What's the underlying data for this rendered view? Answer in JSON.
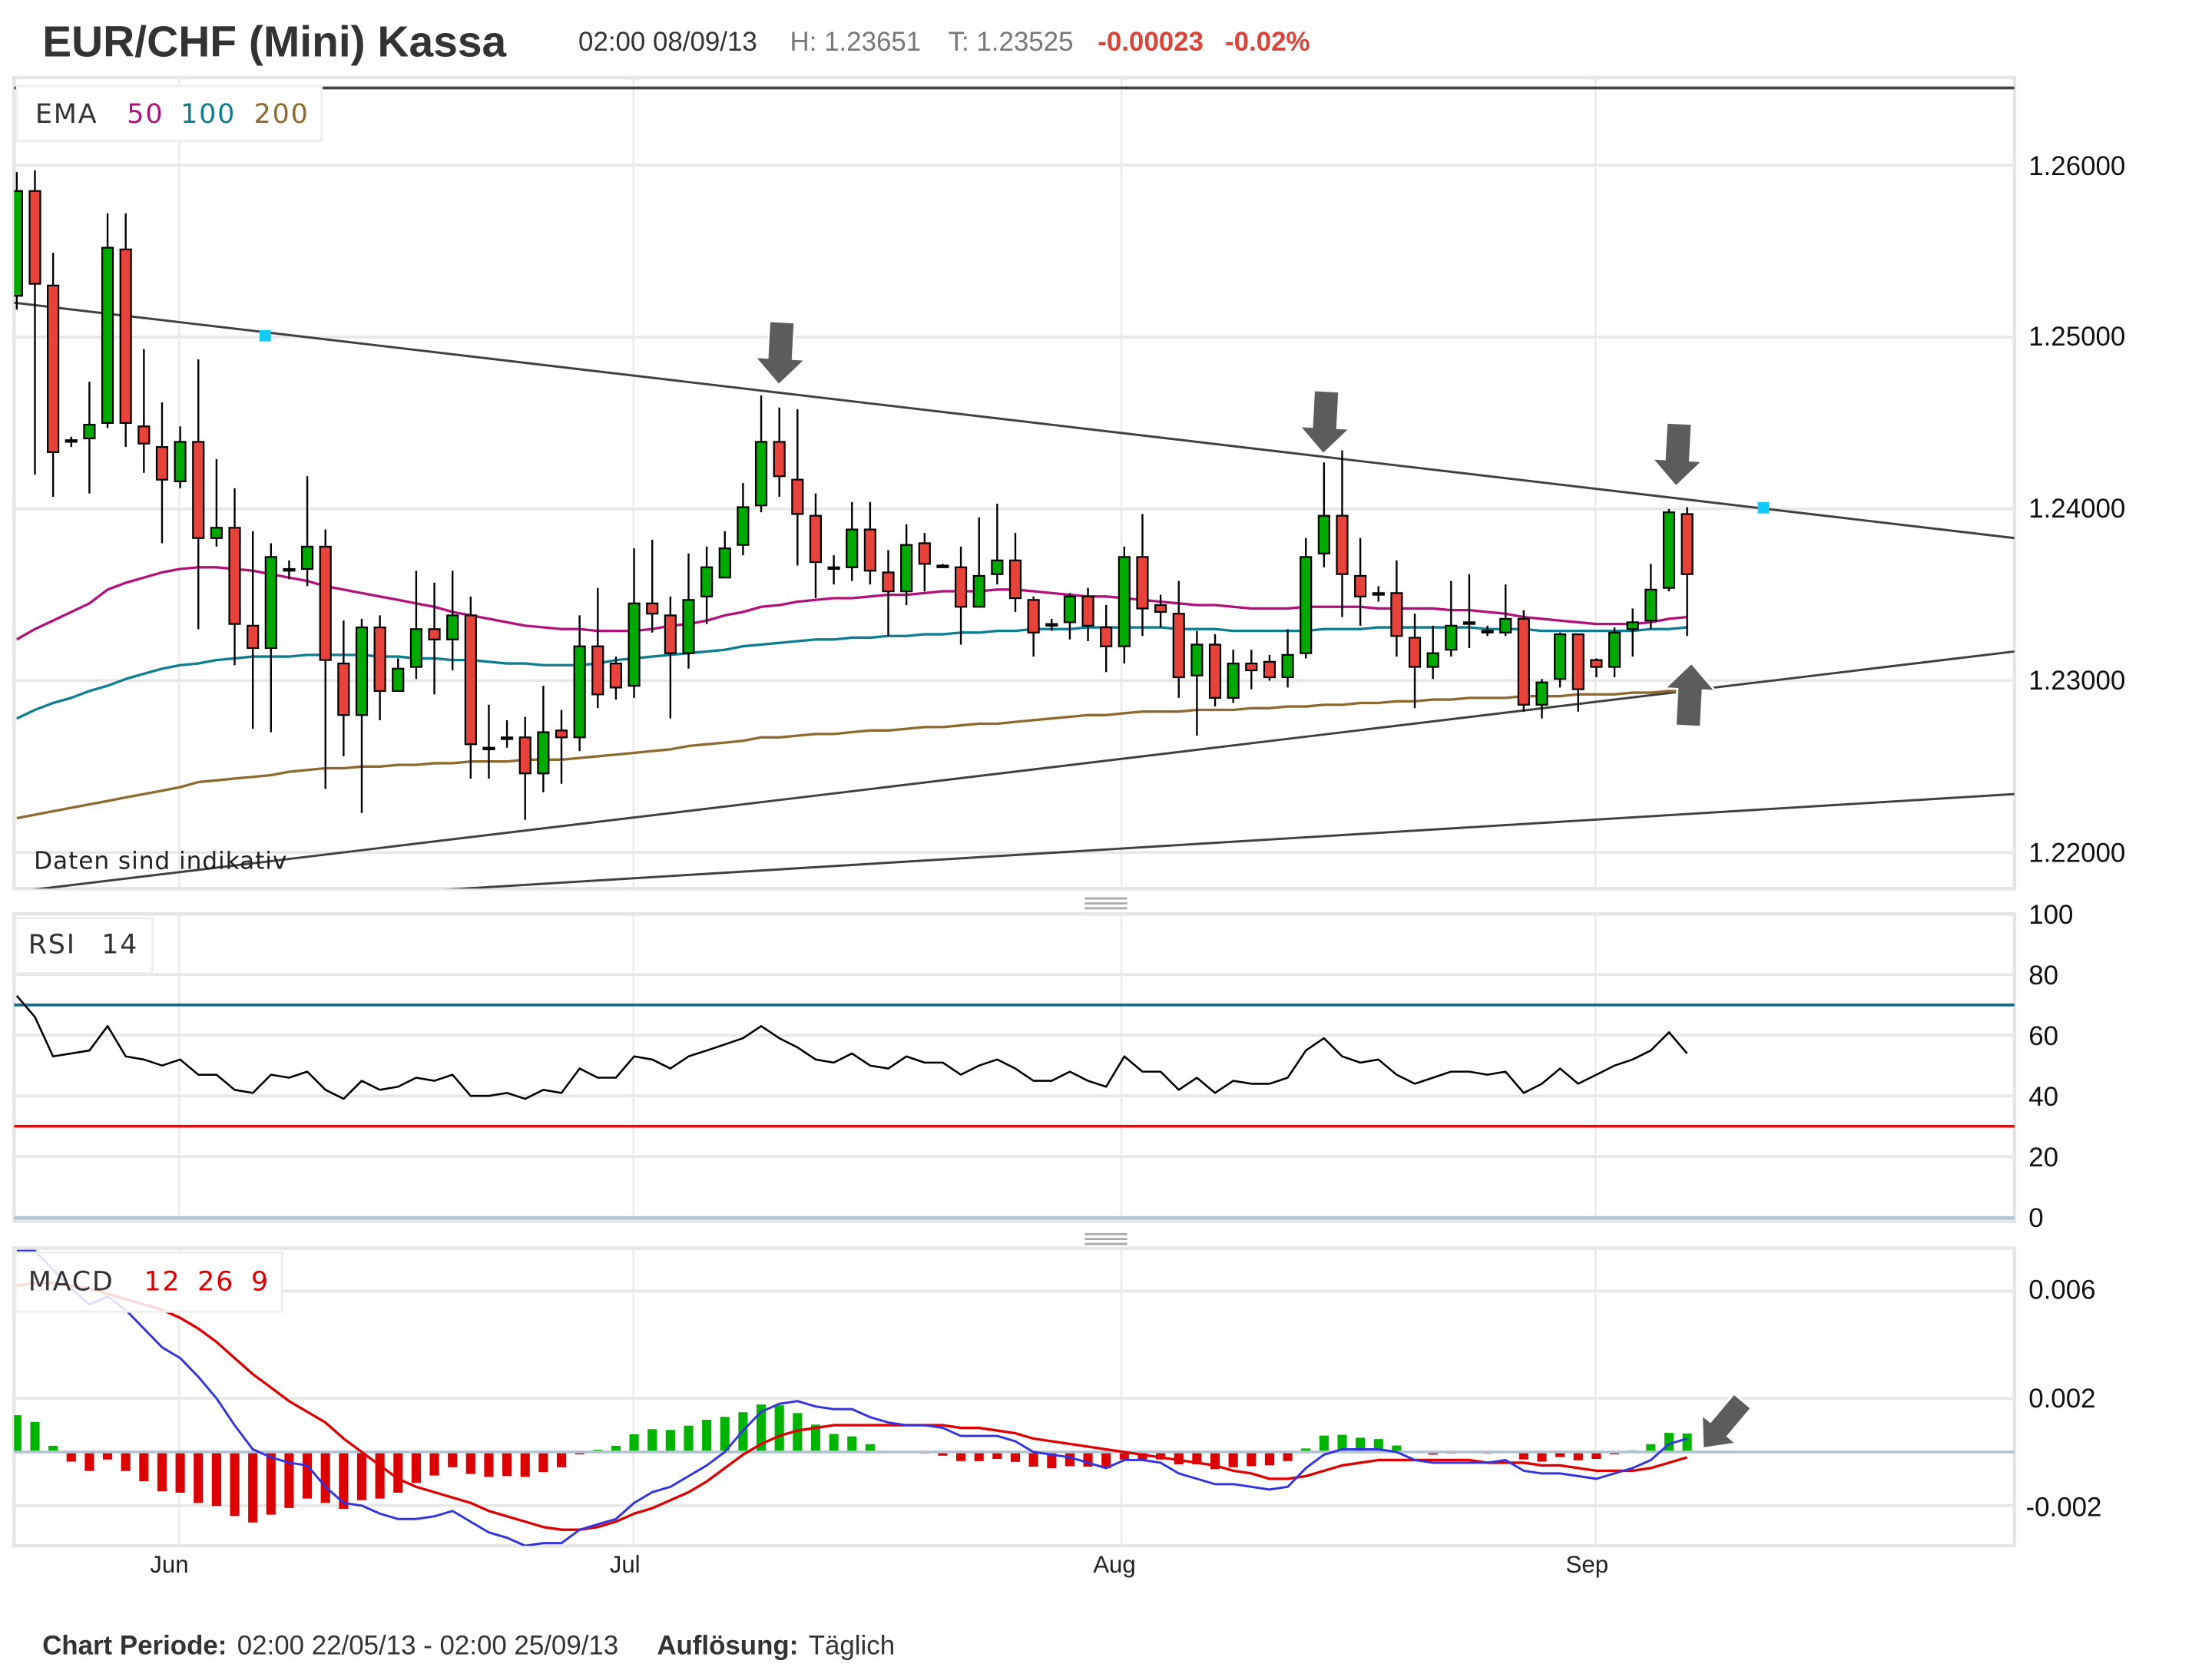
{
  "header": {
    "title": "EUR/CHF (Mini) Kassa",
    "datetime": "02:00 08/09/13",
    "high": "H: 1.23651",
    "last": "T: 1.23525",
    "change": "-0.00023",
    "change_pct": "-0.02%"
  },
  "main_panel": {
    "legend": {
      "name": "EMA",
      "periods": [
        "50",
        "100",
        "200"
      ]
    },
    "price_axis": [
      "1.26000",
      "1.25000",
      "1.24000",
      "1.23000",
      "1.22000"
    ],
    "note": "Daten sind indikativ"
  },
  "rsi_panel": {
    "legend": {
      "name": "RSI",
      "period": "14"
    },
    "axis": [
      "100",
      "80",
      "60",
      "40",
      "20",
      "0"
    ]
  },
  "macd_panel": {
    "legend": {
      "name": "MACD",
      "params": [
        "12",
        "26",
        "9"
      ]
    },
    "axis": [
      "0.006",
      "0.002",
      "-0.002"
    ]
  },
  "x_axis": {
    "months": [
      "Jun",
      "Jul",
      "Aug",
      "Sep"
    ]
  },
  "footer": {
    "period_label": "Chart Periode:",
    "period_value": "02:00 22/05/13 - 02:00 25/09/13",
    "resolution_label": "Auflösung:",
    "resolution_value": "Täglich"
  },
  "colors": {
    "up": "#00aa00",
    "down": "#e8433a",
    "ema50": "#b0127a",
    "ema100": "#0e7d8f",
    "ema200": "#8d6a2e",
    "rsi_line": "#000000",
    "rsi_upper": "#136e8c",
    "rsi_lower": "#ff0000",
    "macd": "#3333dd",
    "signal": "#dd0000",
    "hist_up": "#00b400",
    "hist_down": "#dd0000",
    "trendline": "#404040",
    "marker": "#13ccf5",
    "arrow": "#5c5c5c",
    "change": "#d9453a"
  },
  "chart_data": {
    "type": "candlestick",
    "price_ylim": [
      1.2179,
      1.2651
    ],
    "horizontal_line": 1.2645,
    "trendlines": [
      {
        "start_price": 1.252,
        "end_price": 1.2383
      },
      {
        "start_price": 1.2177,
        "end_price": 1.2317
      },
      {
        "start_price": 1.2163,
        "end_price": 1.2234
      }
    ],
    "ohlc": [
      [
        1.2524,
        1.2596,
        1.2516,
        1.2585
      ],
      [
        1.2585,
        1.2597,
        1.242,
        1.2531
      ],
      [
        1.253,
        1.2549,
        1.2407,
        1.2433
      ],
      [
        1.244,
        1.2442,
        1.2436,
        1.244
      ],
      [
        1.2441,
        1.2474,
        1.2409,
        1.2449
      ],
      [
        1.245,
        1.2572,
        1.2447,
        1.2552
      ],
      [
        1.2551,
        1.2572,
        1.2436,
        1.245
      ],
      [
        1.2448,
        1.2493,
        1.2421,
        1.2438
      ],
      [
        1.2436,
        1.2462,
        1.238,
        1.2417
      ],
      [
        1.2416,
        1.2448,
        1.2412,
        1.2439
      ],
      [
        1.2439,
        1.2487,
        1.233,
        1.2383
      ],
      [
        1.2383,
        1.2429,
        1.2378,
        1.2389
      ],
      [
        1.2389,
        1.2412,
        1.2309,
        1.2333
      ],
      [
        1.2332,
        1.2387,
        1.2272,
        1.2319
      ],
      [
        1.2319,
        1.238,
        1.227,
        1.2372
      ],
      [
        1.2365,
        1.237,
        1.2359,
        1.2364
      ],
      [
        1.2365,
        1.2419,
        1.2355,
        1.2378
      ],
      [
        1.2378,
        1.2388,
        1.2237,
        1.2312
      ],
      [
        1.231,
        1.2335,
        1.2256,
        1.228
      ],
      [
        1.228,
        1.2336,
        1.2223,
        1.2331
      ],
      [
        1.2331,
        1.2338,
        1.2277,
        1.2294
      ],
      [
        1.2294,
        1.2313,
        1.2294,
        1.2307
      ],
      [
        1.2308,
        1.2364,
        1.2301,
        1.233
      ],
      [
        1.233,
        1.2357,
        1.2292,
        1.2324
      ],
      [
        1.2324,
        1.2364,
        1.2306,
        1.2338
      ],
      [
        1.2338,
        1.2349,
        1.2243,
        1.2263
      ],
      [
        1.2261,
        1.2286,
        1.2243,
        1.2261
      ],
      [
        1.2266,
        1.2277,
        1.2261,
        1.2267
      ],
      [
        1.2267,
        1.2279,
        1.2219,
        1.2246
      ],
      [
        1.2246,
        1.2297,
        1.2235,
        1.227
      ],
      [
        1.2271,
        1.2283,
        1.224,
        1.2267
      ],
      [
        1.2267,
        1.2338,
        1.2259,
        1.232
      ],
      [
        1.232,
        1.2354,
        1.2284,
        1.2292
      ],
      [
        1.231,
        1.2314,
        1.2289,
        1.2296
      ],
      [
        1.2297,
        1.2377,
        1.229,
        1.2345
      ],
      [
        1.2345,
        1.2382,
        1.2328,
        1.2339
      ],
      [
        1.2338,
        1.2349,
        1.2278,
        1.2316
      ],
      [
        1.2316,
        1.2374,
        1.2307,
        1.2347
      ],
      [
        1.2349,
        1.2378,
        1.2333,
        1.2366
      ],
      [
        1.236,
        1.2387,
        1.236,
        1.2377
      ],
      [
        1.2379,
        1.2415,
        1.2373,
        1.2401
      ],
      [
        1.2402,
        1.2466,
        1.2398,
        1.2439
      ],
      [
        1.2439,
        1.2459,
        1.2407,
        1.2419
      ],
      [
        1.2417,
        1.2458,
        1.2367,
        1.2397
      ],
      [
        1.2396,
        1.2409,
        1.2348,
        1.2369
      ],
      [
        1.2366,
        1.2373,
        1.2356,
        1.2366
      ],
      [
        1.2366,
        1.2404,
        1.2358,
        1.2388
      ],
      [
        1.2388,
        1.2404,
        1.2356,
        1.2364
      ],
      [
        1.2363,
        1.2376,
        1.2326,
        1.2352
      ],
      [
        1.2352,
        1.2391,
        1.2344,
        1.2379
      ],
      [
        1.238,
        1.2386,
        1.2352,
        1.2368
      ],
      [
        1.2367,
        1.2368,
        1.2366,
        1.2367
      ],
      [
        1.2366,
        1.2378,
        1.2321,
        1.2343
      ],
      [
        1.2343,
        1.2395,
        1.2343,
        1.2361
      ],
      [
        1.2362,
        1.2403,
        1.2356,
        1.237
      ],
      [
        1.237,
        1.2386,
        1.234,
        1.2348
      ],
      [
        1.2347,
        1.2349,
        1.2314,
        1.2328
      ],
      [
        1.2333,
        1.2336,
        1.2329,
        1.2333
      ],
      [
        1.2334,
        1.2351,
        1.2324,
        1.2349
      ],
      [
        1.2349,
        1.2354,
        1.2323,
        1.2332
      ],
      [
        1.2331,
        1.2344,
        1.2305,
        1.232
      ],
      [
        1.232,
        1.2378,
        1.231,
        1.2372
      ],
      [
        1.2372,
        1.2397,
        1.2326,
        1.2342
      ],
      [
        1.2344,
        1.235,
        1.2331,
        1.234
      ],
      [
        1.2339,
        1.2358,
        1.229,
        1.2302
      ],
      [
        1.2303,
        1.2329,
        1.2268,
        1.2321
      ],
      [
        1.2321,
        1.2327,
        1.2285,
        1.229
      ],
      [
        1.229,
        1.2318,
        1.2287,
        1.231
      ],
      [
        1.231,
        1.2318,
        1.2295,
        1.2306
      ],
      [
        1.2311,
        1.2315,
        1.23,
        1.2302
      ],
      [
        1.2302,
        1.233,
        1.2296,
        1.2315
      ],
      [
        1.2316,
        1.2383,
        1.2313,
        1.2372
      ],
      [
        1.2374,
        1.2427,
        1.2366,
        1.2396
      ],
      [
        1.2396,
        1.2434,
        1.2337,
        1.2362
      ],
      [
        1.2361,
        1.2383,
        1.2332,
        1.2349
      ],
      [
        1.2351,
        1.2355,
        1.2346,
        1.2351
      ],
      [
        1.2351,
        1.237,
        1.2314,
        1.2326
      ],
      [
        1.2325,
        1.2339,
        1.2284,
        1.2308
      ],
      [
        1.2308,
        1.2332,
        1.2301,
        1.2316
      ],
      [
        1.2318,
        1.2358,
        1.2314,
        1.2332
      ],
      [
        1.2334,
        1.2362,
        1.2319,
        1.2334
      ],
      [
        1.2329,
        1.2332,
        1.2326,
        1.2329
      ],
      [
        1.2328,
        1.2356,
        1.2326,
        1.2336
      ],
      [
        1.2336,
        1.2341,
        1.2282,
        1.2286
      ],
      [
        1.2286,
        1.2301,
        1.2278,
        1.2299
      ],
      [
        1.2301,
        1.2328,
        1.2296,
        1.2327
      ],
      [
        1.2327,
        1.2327,
        1.2282,
        1.2295
      ],
      [
        1.2312,
        1.2313,
        1.2302,
        1.2308
      ],
      [
        1.2308,
        1.2331,
        1.2302,
        1.2328
      ],
      [
        1.233,
        1.2342,
        1.2314,
        1.2334
      ],
      [
        1.2335,
        1.2368,
        1.233,
        1.2353
      ],
      [
        1.2354,
        1.24,
        1.2352,
        1.2398
      ],
      [
        1.2397,
        1.2401,
        1.2326,
        1.2362
      ]
    ],
    "ema50": [
      1.2324,
      1.233,
      1.2335,
      1.234,
      1.2345,
      1.2353,
      1.2357,
      1.236,
      1.2363,
      1.2365,
      1.2366,
      1.2366,
      1.2365,
      1.2364,
      1.2362,
      1.236,
      1.2358,
      1.2355,
      1.2353,
      1.2351,
      1.2349,
      1.2347,
      1.2345,
      1.2343,
      1.234,
      1.2338,
      1.2336,
      1.2334,
      1.2332,
      1.2331,
      1.233,
      1.233,
      1.2329,
      1.2329,
      1.2329,
      1.233,
      1.2332,
      1.2333,
      1.2335,
      1.2338,
      1.234,
      1.2343,
      1.2344,
      1.2346,
      1.2347,
      1.2348,
      1.2348,
      1.2349,
      1.235,
      1.235,
      1.2351,
      1.2352,
      1.2352,
      1.2352,
      1.2353,
      1.2353,
      1.2352,
      1.2351,
      1.235,
      1.2349,
      1.2349,
      1.2348,
      1.2347,
      1.2346,
      1.2345,
      1.2344,
      1.2344,
      1.2343,
      1.2342,
      1.2342,
      1.2342,
      1.2343,
      1.2343,
      1.2343,
      1.2343,
      1.2342,
      1.2342,
      1.2342,
      1.2342,
      1.2341,
      1.2341,
      1.234,
      1.2339,
      1.2337,
      1.2336,
      1.2335,
      1.2334,
      1.2333,
      1.2333,
      1.2333,
      1.2334,
      1.2336,
      1.2337
    ],
    "ema100": [
      1.2278,
      1.2283,
      1.2287,
      1.229,
      1.2294,
      1.2297,
      1.2301,
      1.2304,
      1.2307,
      1.2309,
      1.231,
      1.2312,
      1.2313,
      1.2314,
      1.2314,
      1.2314,
      1.2315,
      1.2315,
      1.2315,
      1.2315,
      1.2314,
      1.2314,
      1.2313,
      1.2313,
      1.2312,
      1.2312,
      1.2311,
      1.231,
      1.231,
      1.2309,
      1.2309,
      1.2309,
      1.231,
      1.2312,
      1.2313,
      1.2314,
      1.2315,
      1.2316,
      1.2317,
      1.2318,
      1.232,
      1.2321,
      1.2322,
      1.2323,
      1.2324,
      1.2324,
      1.2325,
      1.2325,
      1.2326,
      1.2326,
      1.2327,
      1.2327,
      1.2328,
      1.2328,
      1.2329,
      1.2329,
      1.233,
      1.233,
      1.233,
      1.2331,
      1.2331,
      1.2331,
      1.2331,
      1.2331,
      1.233,
      1.233,
      1.233,
      1.2329,
      1.2329,
      1.2329,
      1.2329,
      1.2329,
      1.233,
      1.233,
      1.233,
      1.2331,
      1.2331,
      1.2331,
      1.2331,
      1.2331,
      1.2331,
      1.233,
      1.233,
      1.233,
      1.2329,
      1.2329,
      1.2329,
      1.2329,
      1.2329,
      1.2329,
      1.233,
      1.233,
      1.2331
    ],
    "ema200": [
      1.222,
      1.2222,
      1.2224,
      1.2226,
      1.2228,
      1.223,
      1.2232,
      1.2234,
      1.2236,
      1.2238,
      1.2241,
      1.2242,
      1.2243,
      1.2244,
      1.2245,
      1.2247,
      1.2248,
      1.2249,
      1.2249,
      1.225,
      1.225,
      1.2251,
      1.2251,
      1.2252,
      1.2252,
      1.2253,
      1.2253,
      1.2253,
      1.2254,
      1.2254,
      1.2254,
      1.2255,
      1.2256,
      1.2257,
      1.2258,
      1.2259,
      1.226,
      1.2262,
      1.2263,
      1.2264,
      1.2265,
      1.2267,
      1.2267,
      1.2268,
      1.2269,
      1.2269,
      1.227,
      1.2271,
      1.2271,
      1.2272,
      1.2273,
      1.2273,
      1.2274,
      1.2275,
      1.2275,
      1.2276,
      1.2277,
      1.2278,
      1.2279,
      1.228,
      1.228,
      1.2281,
      1.2282,
      1.2282,
      1.2282,
      1.2283,
      1.2283,
      1.2283,
      1.2284,
      1.2284,
      1.2285,
      1.2285,
      1.2286,
      1.2286,
      1.2287,
      1.2287,
      1.2288,
      1.2288,
      1.2289,
      1.2289,
      1.229,
      1.229,
      1.229,
      1.2291,
      1.2291,
      1.2291,
      1.2292,
      1.2292,
      1.2292,
      1.2293,
      1.2293,
      1.2294,
      1.2294
    ],
    "rsi": {
      "ylim": [
        0,
        100
      ],
      "levels": [
        70,
        30
      ],
      "values": [
        73,
        66,
        53,
        54,
        55,
        63,
        53,
        52,
        50,
        52,
        47,
        47,
        42,
        41,
        47,
        46,
        48,
        42,
        39,
        45,
        42,
        43,
        46,
        45,
        47,
        40,
        40,
        41,
        39,
        42,
        41,
        49,
        46,
        46,
        53,
        52,
        49,
        53,
        55,
        57,
        59,
        63,
        59,
        56,
        52,
        51,
        54,
        50,
        49,
        53,
        51,
        51,
        47,
        50,
        52,
        49,
        45,
        45,
        48,
        45,
        43,
        53,
        48,
        48,
        42,
        46,
        41,
        45,
        44,
        44,
        46,
        55,
        59,
        53,
        51,
        52,
        47,
        44,
        46,
        48,
        48,
        47,
        48,
        41,
        44,
        49,
        44,
        47,
        50,
        52,
        55,
        61,
        54
      ]
    },
    "macd": {
      "ylim": [
        -0.0035,
        0.0076
      ],
      "macd": [
        0.0075,
        0.0075,
        0.0068,
        0.0061,
        0.0055,
        0.0058,
        0.0053,
        0.0046,
        0.0039,
        0.0035,
        0.0028,
        0.002,
        0.001,
        0.0001,
        -0.0002,
        -0.0004,
        -0.0005,
        -0.0013,
        -0.0019,
        -0.002,
        -0.0023,
        -0.0025,
        -0.0025,
        -0.0024,
        -0.0022,
        -0.0026,
        -0.003,
        -0.0032,
        -0.0035,
        -0.0034,
        -0.0034,
        -0.0029,
        -0.0027,
        -0.0025,
        -0.0019,
        -0.0015,
        -0.0013,
        -0.0009,
        -0.0005,
        0.0,
        0.0008,
        0.0015,
        0.0018,
        0.0019,
        0.0017,
        0.0016,
        0.0016,
        0.0013,
        0.0011,
        0.001,
        0.001,
        0.0009,
        0.0006,
        0.0006,
        0.0006,
        0.0004,
        0.0,
        -0.0001,
        -0.0002,
        -0.0004,
        -0.0006,
        -0.0003,
        -0.0003,
        -0.0004,
        -0.0008,
        -0.001,
        -0.0012,
        -0.0012,
        -0.0013,
        -0.0014,
        -0.0013,
        -0.0006,
        -0.0001,
        0.0001,
        0.0001,
        0.0001,
        0.0,
        -0.0003,
        -0.0004,
        -0.0004,
        -0.0004,
        -0.0004,
        -0.0003,
        -0.0007,
        -0.0008,
        -0.0008,
        -0.0009,
        -0.001,
        -0.0008,
        -0.0006,
        -0.0003,
        0.0003,
        0.0005
      ],
      "signal": [
        0.0062,
        0.0063,
        0.0063,
        0.0062,
        0.0061,
        0.0059,
        0.0057,
        0.0055,
        0.0053,
        0.005,
        0.0046,
        0.0041,
        0.0035,
        0.0029,
        0.0024,
        0.0019,
        0.0015,
        0.0011,
        0.0005,
        0.0,
        -0.0005,
        -0.001,
        -0.0013,
        -0.0015,
        -0.0017,
        -0.0019,
        -0.0022,
        -0.0024,
        -0.0026,
        -0.0028,
        -0.0029,
        -0.0029,
        -0.0028,
        -0.0026,
        -0.0023,
        -0.0021,
        -0.0018,
        -0.0015,
        -0.0011,
        -0.0006,
        -0.0001,
        0.0003,
        0.0006,
        0.0008,
        0.0009,
        0.001,
        0.001,
        0.001,
        0.001,
        0.001,
        0.001,
        0.001,
        0.0009,
        0.0009,
        0.0008,
        0.0007,
        0.0005,
        0.0004,
        0.0003,
        0.0002,
        0.0001,
        0.0,
        -0.0001,
        -0.0002,
        -0.0003,
        -0.0004,
        -0.0005,
        -0.0007,
        -0.0008,
        -0.001,
        -0.001,
        -0.0009,
        -0.0007,
        -0.0005,
        -0.0004,
        -0.0003,
        -0.0003,
        -0.0003,
        -0.0003,
        -0.0003,
        -0.0003,
        -0.0004,
        -0.0004,
        -0.0004,
        -0.0005,
        -0.0005,
        -0.0006,
        -0.0007,
        -0.0007,
        -0.0007,
        -0.0006,
        -0.0004,
        -0.0002
      ],
      "histogram": [
        0.00137,
        0.00112,
        0.00023,
        -0.00036,
        -0.00071,
        -0.00028,
        -0.00071,
        -0.00109,
        -0.00147,
        -0.00152,
        -0.0019,
        -0.00201,
        -0.00239,
        -0.00263,
        -0.00234,
        -0.00209,
        -0.00174,
        -0.0019,
        -0.00212,
        -0.0018,
        -0.00174,
        -0.00152,
        -0.00115,
        -0.00088,
        -0.00057,
        -0.00082,
        -0.00093,
        -0.0009,
        -0.00093,
        -0.00075,
        -0.00057,
        -9e-05,
        8e-05,
        0.00023,
        0.00066,
        0.00085,
        0.00082,
        0.00098,
        0.0012,
        0.00131,
        0.00148,
        0.00177,
        0.00174,
        0.00145,
        0.00102,
        0.00067,
        0.00058,
        0.00029,
        1e-05,
        1e-05,
        -6e-05,
        -0.00014,
        -0.00034,
        -0.00034,
        -0.00026,
        -0.00037,
        -0.00055,
        -0.00061,
        -0.00053,
        -0.00055,
        -0.00061,
        -0.00028,
        -0.00028,
        -0.00028,
        -0.00046,
        -0.00046,
        -0.00064,
        -0.00057,
        -0.00053,
        -0.0005,
        -0.00034,
        0.00013,
        0.00061,
        0.00064,
        0.00053,
        0.00048,
        0.00024,
        0,
        -0.0001,
        -6e-05,
        -3e-05,
        -6e-05,
        2e-05,
        -0.00028,
        -0.00036,
        -0.00019,
        -0.00031,
        -0.00026,
        -9e-05,
        6e-05,
        0.00029,
        0.00071,
        0.00069
      ]
    }
  }
}
